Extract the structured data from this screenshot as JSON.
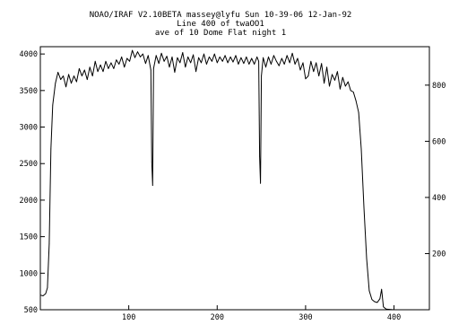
{
  "title": {
    "line1": "NOAO/IRAF V2.10BETA massey@lyfu Sun 10-39-06 12-Jan-92",
    "line2": "Line 400 of twaOO1",
    "line3": "ave of 10 Dome Flat night 1"
  },
  "chart_data": {
    "type": "line",
    "title": "",
    "xlabel": "",
    "ylabel": "",
    "xlim": [
      0,
      440
    ],
    "ylim": [
      500,
      4100
    ],
    "y2lim": [
      0,
      937
    ],
    "x_ticks": [
      100,
      200,
      300,
      400
    ],
    "y_ticks": [
      500,
      1000,
      1500,
      2000,
      2500,
      3000,
      3500,
      4000
    ],
    "y2_ticks": [
      200,
      400,
      600,
      800
    ],
    "x_tick_labels": [
      "100",
      "200",
      "300",
      "400"
    ],
    "y_tick_labels": [
      "500",
      "1000",
      "1500",
      "2000",
      "2500",
      "3000",
      "3500",
      "4000"
    ],
    "y2_tick_labels": [
      "200",
      "400",
      "600",
      "800"
    ],
    "grid": false,
    "series": [
      {
        "color": "#000000",
        "points": [
          [
            0,
            700
          ],
          [
            3,
            690
          ],
          [
            6,
            720
          ],
          [
            8,
            800
          ],
          [
            10,
            1400
          ],
          [
            12,
            2700
          ],
          [
            14,
            3300
          ],
          [
            17,
            3600
          ],
          [
            20,
            3750
          ],
          [
            23,
            3650
          ],
          [
            26,
            3700
          ],
          [
            29,
            3550
          ],
          [
            32,
            3720
          ],
          [
            35,
            3600
          ],
          [
            38,
            3700
          ],
          [
            41,
            3620
          ],
          [
            44,
            3800
          ],
          [
            47,
            3700
          ],
          [
            50,
            3780
          ],
          [
            53,
            3650
          ],
          [
            56,
            3820
          ],
          [
            59,
            3700
          ],
          [
            62,
            3900
          ],
          [
            65,
            3760
          ],
          [
            68,
            3850
          ],
          [
            71,
            3760
          ],
          [
            74,
            3900
          ],
          [
            77,
            3800
          ],
          [
            80,
            3880
          ],
          [
            83,
            3800
          ],
          [
            86,
            3920
          ],
          [
            89,
            3860
          ],
          [
            92,
            3960
          ],
          [
            95,
            3820
          ],
          [
            98,
            3940
          ],
          [
            101,
            3900
          ],
          [
            104,
            4050
          ],
          [
            107,
            3950
          ],
          [
            110,
            4030
          ],
          [
            113,
            3960
          ],
          [
            116,
            4000
          ],
          [
            119,
            3870
          ],
          [
            122,
            3980
          ],
          [
            125,
            3780
          ],
          [
            126,
            2520
          ],
          [
            127,
            2200
          ],
          [
            128,
            3800
          ],
          [
            131,
            3980
          ],
          [
            134,
            3870
          ],
          [
            137,
            4010
          ],
          [
            140,
            3900
          ],
          [
            143,
            3970
          ],
          [
            146,
            3820
          ],
          [
            149,
            3960
          ],
          [
            152,
            3750
          ],
          [
            155,
            3950
          ],
          [
            158,
            3880
          ],
          [
            161,
            4020
          ],
          [
            164,
            3820
          ],
          [
            167,
            3960
          ],
          [
            170,
            3880
          ],
          [
            173,
            3990
          ],
          [
            176,
            3760
          ],
          [
            179,
            3950
          ],
          [
            182,
            3880
          ],
          [
            185,
            4000
          ],
          [
            188,
            3860
          ],
          [
            191,
            3960
          ],
          [
            194,
            3900
          ],
          [
            197,
            4000
          ],
          [
            200,
            3880
          ],
          [
            203,
            3960
          ],
          [
            206,
            3900
          ],
          [
            209,
            3980
          ],
          [
            212,
            3880
          ],
          [
            215,
            3960
          ],
          [
            218,
            3890
          ],
          [
            221,
            3980
          ],
          [
            224,
            3860
          ],
          [
            227,
            3950
          ],
          [
            230,
            3870
          ],
          [
            233,
            3960
          ],
          [
            236,
            3860
          ],
          [
            239,
            3940
          ],
          [
            242,
            3860
          ],
          [
            245,
            3960
          ],
          [
            247,
            3900
          ],
          [
            248,
            2600
          ],
          [
            249,
            2230
          ],
          [
            250,
            3700
          ],
          [
            252,
            3950
          ],
          [
            255,
            3820
          ],
          [
            258,
            3960
          ],
          [
            261,
            3860
          ],
          [
            264,
            3980
          ],
          [
            267,
            3900
          ],
          [
            270,
            3840
          ],
          [
            273,
            3940
          ],
          [
            276,
            3860
          ],
          [
            279,
            3980
          ],
          [
            282,
            3880
          ],
          [
            285,
            4010
          ],
          [
            288,
            3860
          ],
          [
            291,
            3940
          ],
          [
            294,
            3780
          ],
          [
            297,
            3880
          ],
          [
            300,
            3660
          ],
          [
            303,
            3700
          ],
          [
            306,
            3900
          ],
          [
            309,
            3760
          ],
          [
            312,
            3880
          ],
          [
            315,
            3700
          ],
          [
            318,
            3870
          ],
          [
            321,
            3600
          ],
          [
            324,
            3820
          ],
          [
            327,
            3560
          ],
          [
            330,
            3720
          ],
          [
            333,
            3640
          ],
          [
            336,
            3760
          ],
          [
            339,
            3520
          ],
          [
            342,
            3680
          ],
          [
            345,
            3560
          ],
          [
            348,
            3620
          ],
          [
            351,
            3500
          ],
          [
            354,
            3480
          ],
          [
            357,
            3360
          ],
          [
            360,
            3200
          ],
          [
            363,
            2700
          ],
          [
            366,
            1900
          ],
          [
            369,
            1200
          ],
          [
            372,
            760
          ],
          [
            375,
            640
          ],
          [
            378,
            610
          ],
          [
            381,
            600
          ],
          [
            384,
            650
          ],
          [
            386,
            780
          ],
          [
            388,
            540
          ],
          [
            391,
            510
          ],
          [
            395,
            505
          ],
          [
            400,
            500
          ]
        ]
      }
    ]
  }
}
